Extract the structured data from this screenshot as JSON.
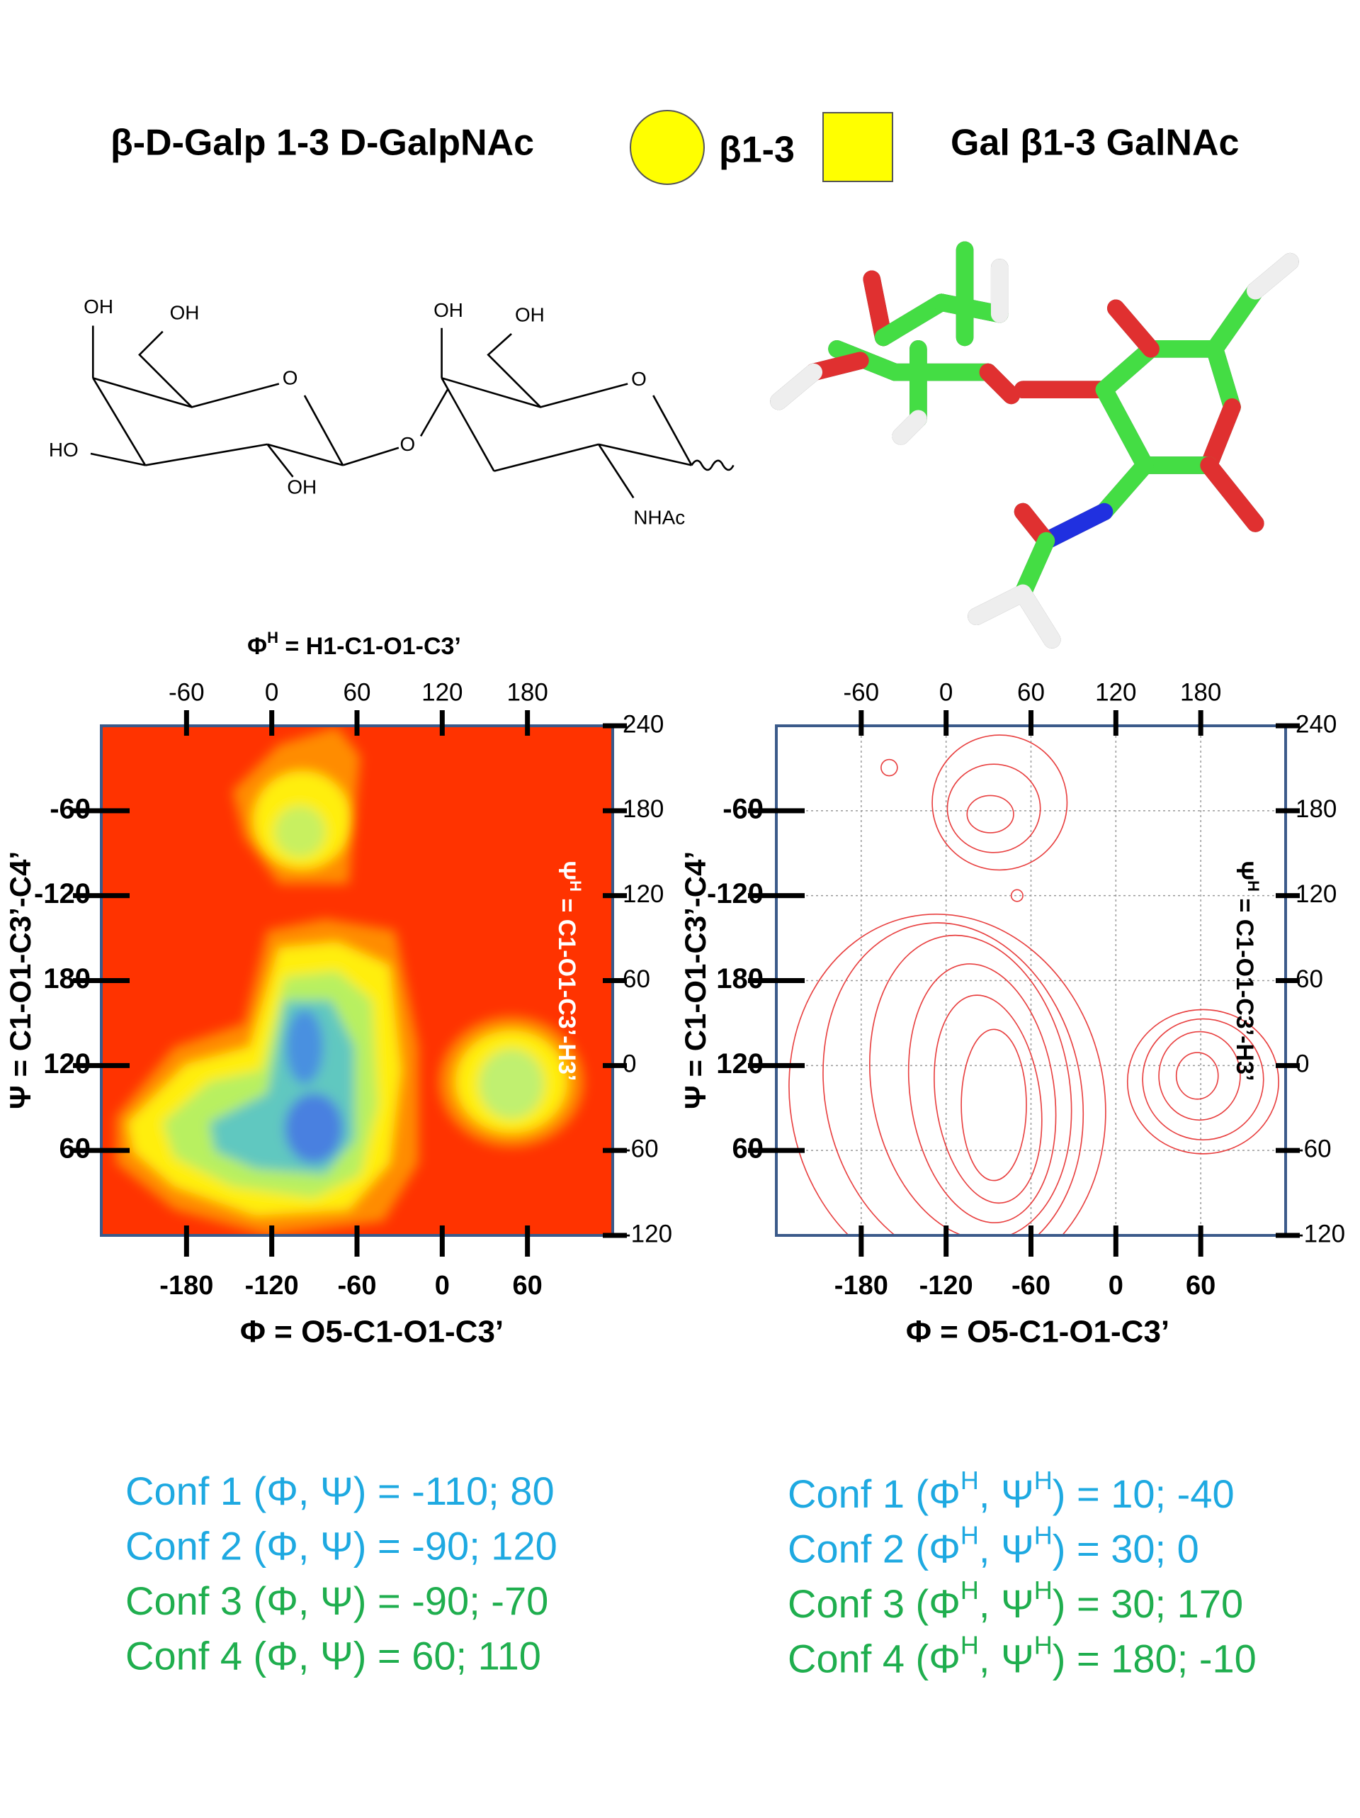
{
  "header": {
    "left": "β-D-Galp 1-3 D-GalpNAc",
    "linkage": "β1-3",
    "right": "Gal β1-3 GalNAc"
  },
  "structure_labels": [
    "OH",
    "OH",
    "O",
    "HO",
    "OH",
    "O",
    "OH",
    "OH",
    "O",
    "NHAc"
  ],
  "axes": {
    "top": {
      "label": [
        "Φ",
        "H",
        " = H1-C1-O1-C3’"
      ],
      "lim": [
        -120,
        240
      ],
      "ticks": [
        -60,
        0,
        60,
        120,
        180
      ]
    },
    "bottom": {
      "label": "Φ = O5-C1-O1-C3’",
      "lim": [
        -240,
        120
      ],
      "ticks": [
        -180,
        -120,
        -60,
        0,
        60
      ]
    },
    "left": {
      "label": "Ψ = C1-O1-C3’-C4’",
      "lim": [
        0,
        360
      ],
      "ticks": [
        {
          "value": 300,
          "label": "-60"
        },
        {
          "value": 240,
          "label": "-120"
        },
        180,
        120,
        60
      ]
    },
    "right": {
      "label": [
        "Ψ",
        "H",
        " = C1-O1-C3’-H3’"
      ],
      "lim": [
        -120,
        240
      ],
      "ticks": [
        240,
        180,
        120,
        60,
        0,
        -60,
        -120
      ]
    }
  },
  "plots": [
    {
      "type": "heatmap",
      "grid": false,
      "right_label_color": "#ffffff"
    },
    {
      "type": "contour",
      "grid": true,
      "right_label_color": "#000000"
    }
  ],
  "conformers": {
    "left": [
      {
        "text": [
          "Conf 1 (Φ, Ψ) = -110; 80"
        ],
        "color": "#1ea9e1"
      },
      {
        "text": [
          "Conf 2 (Φ, Ψ) = -90; 120"
        ],
        "color": "#1ea9e1"
      },
      {
        "text": [
          "Conf 3 (Φ, Ψ) =  -90; -70"
        ],
        "color": "#1fae4e"
      },
      {
        "text": [
          "Conf 4 (Φ, Ψ) =  60; 110"
        ],
        "color": "#1fae4e"
      }
    ],
    "right": [
      {
        "text": [
          "Conf 1 (Φ",
          "H",
          ", Ψ",
          "H",
          ") = 10; -40"
        ],
        "color": "#1ea9e1"
      },
      {
        "text": [
          "Conf 2 (Φ",
          "H",
          ", Ψ",
          "H",
          ") = 30;  0"
        ],
        "color": "#1ea9e1"
      },
      {
        "text": [
          "Conf 3 (Φ",
          "H",
          ", Ψ",
          "H",
          ") = 30; 170"
        ],
        "color": "#1fae4e"
      },
      {
        "text": [
          "Conf 4 (Φ",
          "H",
          ", Ψ",
          "H",
          ") = 180; -10"
        ],
        "color": "#1fae4e"
      }
    ]
  }
}
